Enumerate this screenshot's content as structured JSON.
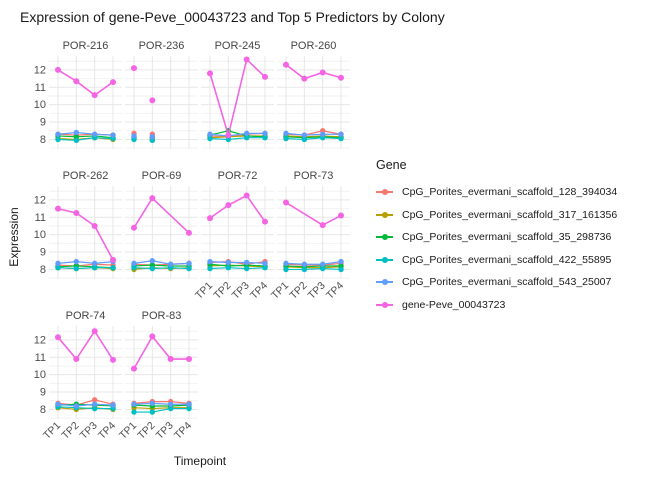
{
  "title": "Expression of gene-Peve_00043723 and Top 5 Predictors by Colony",
  "axes": {
    "x_title": "Timepoint",
    "y_title": "Expression",
    "x_ticks": [
      "TP1",
      "TP2",
      "TP3",
      "TP4"
    ],
    "y_ticks": [
      8,
      9,
      10,
      11,
      12
    ]
  },
  "legend": {
    "title": "Gene",
    "items": [
      {
        "label": "CpG_Porites_evermani_scaffold_128_394034",
        "color": "#F8766D"
      },
      {
        "label": "CpG_Porites_evermani_scaffold_317_161356",
        "color": "#B79F00"
      },
      {
        "label": "CpG_Porites_evermani_scaffold_35_298736",
        "color": "#00BA38"
      },
      {
        "label": "CpG_Porites_evermani_scaffold_422_55895",
        "color": "#00BFC4"
      },
      {
        "label": "CpG_Porites_evermani_scaffold_543_25007",
        "color": "#619CFF"
      },
      {
        "label": "gene-Peve_00043723",
        "color": "#F564E3"
      }
    ]
  },
  "chart_data": {
    "type": "line",
    "x": [
      "TP1",
      "TP2",
      "TP3",
      "TP4"
    ],
    "ylim": [
      7.45,
      12.8
    ],
    "grid": {
      "major_y": [
        8,
        9,
        10,
        11,
        12
      ],
      "minor_y": [
        7.5,
        8.5,
        9.5,
        10.5,
        11.5,
        12.5
      ]
    },
    "series_order": [
      "CpG_Porites_evermani_scaffold_128_394034",
      "CpG_Porites_evermani_scaffold_317_161356",
      "CpG_Porites_evermani_scaffold_35_298736",
      "CpG_Porites_evermani_scaffold_422_55895",
      "CpG_Porites_evermani_scaffold_543_25007",
      "gene-Peve_00043723"
    ],
    "facets": [
      {
        "name": "POR-216",
        "row": 0,
        "col": 0,
        "line": true,
        "values": [
          [
            8.3,
            8.25,
            8.3,
            8.25
          ],
          [
            8.05,
            8.0,
            8.1,
            8.0
          ],
          [
            8.2,
            8.15,
            8.2,
            8.1
          ],
          [
            8.0,
            7.95,
            8.1,
            8.05
          ],
          [
            8.3,
            8.4,
            8.3,
            8.25
          ],
          [
            12.0,
            11.35,
            10.55,
            11.3
          ]
        ]
      },
      {
        "name": "POR-236",
        "row": 0,
        "col": 1,
        "line": false,
        "values": [
          [
            8.35,
            8.3,
            null,
            null
          ],
          [
            8.05,
            8.0,
            null,
            null
          ],
          [
            8.15,
            8.1,
            null,
            null
          ],
          [
            8.0,
            7.95,
            null,
            null
          ],
          [
            8.2,
            8.15,
            null,
            null
          ],
          [
            12.1,
            10.25,
            null,
            null
          ]
        ]
      },
      {
        "name": "POR-245",
        "row": 0,
        "col": 2,
        "line": true,
        "values": [
          [
            8.2,
            8.15,
            8.3,
            8.35
          ],
          [
            8.1,
            8.15,
            8.2,
            8.2
          ],
          [
            8.25,
            8.5,
            8.2,
            8.15
          ],
          [
            8.05,
            8.0,
            8.1,
            8.1
          ],
          [
            8.3,
            8.2,
            8.35,
            8.35
          ],
          [
            11.8,
            8.25,
            12.6,
            11.6
          ]
        ]
      },
      {
        "name": "POR-260",
        "row": 0,
        "col": 3,
        "line": true,
        "values": [
          [
            8.3,
            8.25,
            8.5,
            8.3
          ],
          [
            8.2,
            8.15,
            8.2,
            8.15
          ],
          [
            8.15,
            8.1,
            8.15,
            8.1
          ],
          [
            8.05,
            8.0,
            8.1,
            8.05
          ],
          [
            8.35,
            8.25,
            8.3,
            8.3
          ],
          [
            12.3,
            11.5,
            11.85,
            11.55
          ]
        ]
      },
      {
        "name": "POR-262",
        "row": 1,
        "col": 0,
        "line": true,
        "values": [
          [
            8.25,
            8.2,
            8.3,
            8.25
          ],
          [
            8.1,
            8.05,
            8.1,
            8.05
          ],
          [
            8.15,
            8.2,
            8.15,
            8.1
          ],
          [
            8.1,
            8.05,
            8.1,
            8.1
          ],
          [
            8.35,
            8.45,
            8.35,
            8.45
          ],
          [
            11.5,
            11.25,
            10.5,
            8.55
          ]
        ]
      },
      {
        "name": "POR-69",
        "row": 1,
        "col": 1,
        "line": true,
        "values": [
          [
            8.3,
            8.25,
            8.3,
            8.35
          ],
          [
            8.0,
            8.1,
            8.05,
            8.1
          ],
          [
            8.2,
            8.25,
            8.2,
            8.2
          ],
          [
            8.1,
            8.05,
            8.1,
            8.05
          ],
          [
            8.35,
            8.5,
            8.3,
            8.35
          ],
          [
            10.4,
            12.1,
            null,
            10.1
          ]
        ]
      },
      {
        "name": "POR-72",
        "row": 1,
        "col": 2,
        "line": true,
        "values": [
          [
            8.4,
            8.45,
            8.3,
            8.45
          ],
          [
            8.2,
            8.25,
            8.2,
            8.15
          ],
          [
            8.3,
            8.2,
            8.25,
            8.2
          ],
          [
            8.05,
            8.1,
            8.05,
            8.1
          ],
          [
            8.45,
            8.4,
            8.4,
            8.35
          ],
          [
            10.95,
            11.7,
            12.25,
            10.75
          ]
        ]
      },
      {
        "name": "POR-73",
        "row": 1,
        "col": 3,
        "line": true,
        "values": [
          [
            8.3,
            8.25,
            8.25,
            8.35
          ],
          [
            8.15,
            8.1,
            8.1,
            8.15
          ],
          [
            8.2,
            8.15,
            8.2,
            8.2
          ],
          [
            8.0,
            8.0,
            8.05,
            8.0
          ],
          [
            8.35,
            8.3,
            8.3,
            8.45
          ],
          [
            11.85,
            null,
            10.55,
            11.1
          ]
        ]
      },
      {
        "name": "POR-74",
        "row": 2,
        "col": 0,
        "line": true,
        "values": [
          [
            8.35,
            8.25,
            8.55,
            8.3
          ],
          [
            8.1,
            8.0,
            8.1,
            8.0
          ],
          [
            8.25,
            8.3,
            8.25,
            8.2
          ],
          [
            8.15,
            8.1,
            8.05,
            8.05
          ],
          [
            8.3,
            8.2,
            8.3,
            8.25
          ],
          [
            12.15,
            10.9,
            12.5,
            10.85
          ]
        ]
      },
      {
        "name": "POR-83",
        "row": 2,
        "col": 1,
        "line": true,
        "values": [
          [
            8.35,
            8.45,
            8.45,
            8.35
          ],
          [
            8.1,
            8.05,
            8.1,
            8.1
          ],
          [
            8.25,
            8.2,
            8.2,
            8.25
          ],
          [
            7.85,
            7.85,
            8.05,
            8.05
          ],
          [
            8.3,
            8.35,
            8.3,
            8.3
          ],
          [
            10.35,
            12.2,
            10.9,
            10.9
          ]
        ]
      }
    ]
  }
}
